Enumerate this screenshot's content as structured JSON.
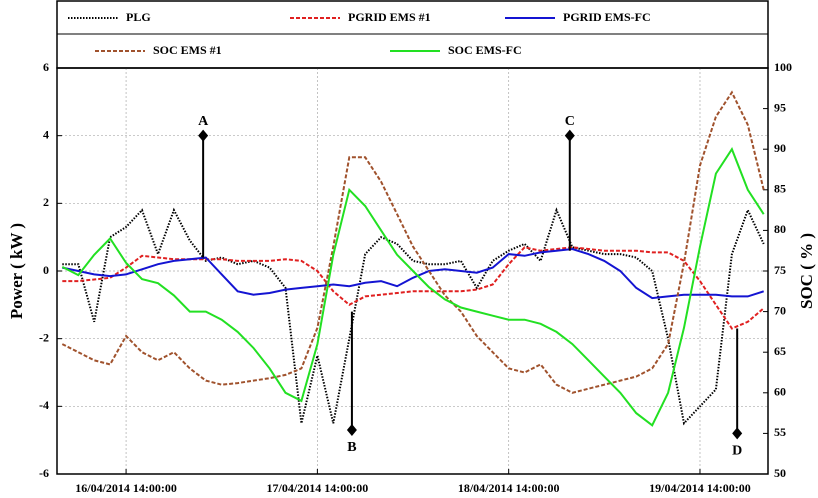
{
  "chart_data": {
    "type": "line",
    "y_label": "Power ( kW )",
    "y2_label": "SOC ( % )",
    "x": [
      "16/04/2014 06:00:00",
      "16/04/2014 08:00:00",
      "16/04/2014 10:00:00",
      "16/04/2014 12:00:00",
      "16/04/2014 14:00:00",
      "16/04/2014 16:00:00",
      "16/04/2014 18:00:00",
      "16/04/2014 20:00:00",
      "16/04/2014 22:00:00",
      "17/04/2014 00:00:00",
      "17/04/2014 02:00:00",
      "17/04/2014 04:00:00",
      "17/04/2014 06:00:00",
      "17/04/2014 08:00:00",
      "17/04/2014 10:00:00",
      "17/04/2014 12:00:00",
      "17/04/2014 14:00:00",
      "17/04/2014 16:00:00",
      "17/04/2014 18:00:00",
      "17/04/2014 20:00:00",
      "17/04/2014 22:00:00",
      "18/04/2014 00:00:00",
      "18/04/2014 02:00:00",
      "18/04/2014 04:00:00",
      "18/04/2014 06:00:00",
      "18/04/2014 08:00:00",
      "18/04/2014 10:00:00",
      "18/04/2014 12:00:00",
      "18/04/2014 14:00:00",
      "18/04/2014 16:00:00",
      "18/04/2014 18:00:00",
      "18/04/2014 20:00:00",
      "18/04/2014 22:00:00",
      "19/04/2014 00:00:00",
      "19/04/2014 02:00:00",
      "19/04/2014 04:00:00",
      "19/04/2014 06:00:00",
      "19/04/2014 08:00:00",
      "19/04/2014 10:00:00",
      "19/04/2014 12:00:00",
      "19/04/2014 14:00:00",
      "19/04/2014 16:00:00",
      "19/04/2014 18:00:00",
      "19/04/2014 20:00:00",
      "19/04/2014 22:00:00"
    ],
    "xlim": [
      "16/04/2014 05:20:00",
      "19/04/2014 22:32:00"
    ],
    "xticks": [
      "16/04/2014 14:00:00",
      "17/04/2014 14:00:00",
      "18/04/2014 14:00:00",
      "19/04/2014 14:00:00"
    ],
    "ylim": [
      -6,
      6
    ],
    "yticks": [
      -6,
      -4,
      -2,
      0,
      2,
      4,
      6
    ],
    "y2lim": [
      50,
      100
    ],
    "y2ticks": [
      50,
      55,
      60,
      65,
      70,
      75,
      80,
      85,
      90,
      95,
      100
    ],
    "grid": true,
    "series": [
      {
        "name": "PLG",
        "color": "#000000",
        "style": "dotted",
        "values": [
          0.2,
          0.2,
          -1.5,
          1.0,
          1.3,
          1.8,
          0.5,
          1.8,
          0.9,
          0.3,
          0.4,
          0.2,
          0.3,
          0.1,
          -0.5,
          -4.5,
          -2.5,
          -4.5,
          -2.0,
          0.5,
          1.0,
          0.8,
          0.3,
          0.2,
          0.2,
          0.3,
          -0.5,
          0.3,
          0.6,
          0.8,
          0.3,
          1.8,
          0.7,
          0.6,
          0.5,
          0.5,
          0.4,
          0.0,
          -2.0,
          -4.5,
          -4.0,
          -3.5,
          0.5,
          1.8,
          0.8
        ]
      },
      {
        "name": "PGRID EMS #1",
        "color": "#e02020",
        "style": "dashed",
        "values": [
          -0.3,
          -0.3,
          -0.25,
          -0.2,
          0.1,
          0.45,
          0.4,
          0.35,
          0.35,
          0.35,
          0.35,
          0.3,
          0.3,
          0.3,
          0.35,
          0.3,
          0.0,
          -0.6,
          -1.0,
          -0.75,
          -0.7,
          -0.65,
          -0.6,
          -0.6,
          -0.6,
          -0.6,
          -0.55,
          -0.4,
          0.2,
          0.7,
          0.6,
          0.65,
          0.7,
          0.65,
          0.6,
          0.6,
          0.6,
          0.55,
          0.55,
          0.3,
          -0.3,
          -1.0,
          -1.7,
          -1.5,
          -1.1
        ]
      },
      {
        "name": "PGRID EMS-FC",
        "color": "#1414d2",
        "style": "solid",
        "values": [
          0.1,
          0.0,
          -0.1,
          -0.15,
          -0.1,
          0.05,
          0.2,
          0.3,
          0.35,
          0.4,
          -0.1,
          -0.6,
          -0.7,
          -0.65,
          -0.55,
          -0.5,
          -0.45,
          -0.4,
          -0.45,
          -0.35,
          -0.3,
          -0.45,
          -0.2,
          0.0,
          0.05,
          0.0,
          -0.05,
          0.1,
          0.5,
          0.45,
          0.55,
          0.6,
          0.65,
          0.5,
          0.3,
          0.0,
          -0.5,
          -0.8,
          -0.75,
          -0.7,
          -0.7,
          -0.7,
          -0.75,
          -0.75,
          -0.6
        ]
      },
      {
        "name": "SOC EMS #1",
        "color": "#a0522d",
        "style": "dashed",
        "axis": "y2",
        "values": [
          66,
          65,
          64,
          63.5,
          67,
          65,
          64,
          65,
          63,
          61.5,
          61,
          61.2,
          61.5,
          61.8,
          62.2,
          63,
          68,
          78,
          89,
          89,
          86,
          82,
          78,
          75,
          72,
          70,
          67,
          65,
          63,
          62.5,
          63.5,
          61,
          60,
          60.5,
          61,
          61.5,
          62,
          63,
          66,
          76,
          88,
          94,
          97,
          93,
          85
        ]
      },
      {
        "name": "SOC EMS-FC",
        "color": "#22e022",
        "style": "solid",
        "axis": "y2",
        "values": [
          75.5,
          74.5,
          77,
          79,
          76,
          74,
          73.5,
          72,
          70,
          70,
          69,
          67.5,
          65.5,
          63,
          60,
          59,
          66,
          77,
          85,
          83,
          80,
          77,
          75,
          73,
          71.5,
          70.5,
          70,
          69.5,
          69,
          69,
          68.5,
          67.5,
          66,
          64,
          62,
          60,
          57.5,
          56,
          60,
          68,
          78,
          87,
          90,
          85,
          82
        ]
      }
    ],
    "annotations": [
      {
        "label": "A",
        "x": "16/04/2014 23:40:00",
        "y": 4,
        "y_end": 0.4
      },
      {
        "label": "B",
        "x": "17/04/2014 18:20:00",
        "y": -4.7,
        "y_end": -1.2
      },
      {
        "label": "C",
        "x": "18/04/2014 21:40:00",
        "y": 4,
        "y_end": 0.6
      },
      {
        "label": "D",
        "x": "19/04/2014 18:40:00",
        "y": -4.8,
        "y_end": -1.7
      }
    ]
  }
}
